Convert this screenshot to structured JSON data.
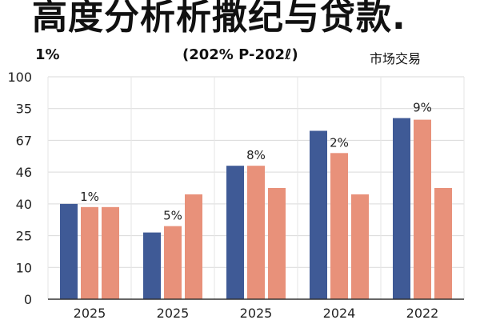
{
  "header": {
    "title": "高度分析析撒纪与贷款.",
    "subtitle_left": "1%",
    "subtitle_mid": "(202% P-202ℓ)",
    "subtitle_right": "市场交易"
  },
  "chart_data": {
    "type": "bar",
    "title": "高度分析析撒纪与贷款.",
    "categories": [
      "2025",
      "2025",
      "2025",
      "2024",
      "2022"
    ],
    "y_tick_labels": [
      "0",
      "10",
      "25",
      "40",
      "46",
      "67",
      "35",
      "100"
    ],
    "y_tick_positions": [
      0,
      1,
      2,
      3,
      4,
      5,
      6,
      7
    ],
    "ylim": [
      0,
      7
    ],
    "grid": true,
    "series": [
      {
        "values": [
          3.0,
          2.1,
          4.2,
          5.3,
          5.7
        ]
      },
      {
        "values": [
          2.9,
          2.3,
          4.2,
          4.6,
          5.65
        ]
      },
      {
        "values": [
          2.9,
          3.3,
          3.5,
          3.3,
          3.5
        ]
      }
    ],
    "data_labels": [
      {
        "text": "1%",
        "category": 0,
        "y": 3.0
      },
      {
        "text": "5%",
        "category": 1,
        "y": 2.4
      },
      {
        "text": "8%",
        "category": 2,
        "y": 4.3
      },
      {
        "text": "2%",
        "category": 3,
        "y": 4.7
      },
      {
        "text": "9%",
        "category": 4,
        "y": 5.8
      }
    ],
    "colors": [
      "#3f5a96",
      "#e8917a",
      "#e8917a"
    ]
  }
}
